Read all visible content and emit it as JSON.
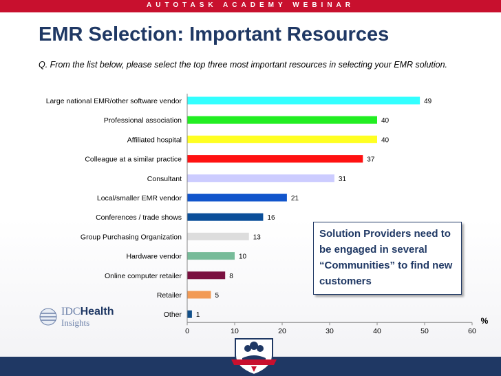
{
  "header": {
    "banner": "AUTOTASK ACADEMY WEBINAR"
  },
  "slide": {
    "title": "EMR Selection: Important Resources",
    "question": "Q. From the list below, please select the top three most important resources in selecting your EMR solution.",
    "callout": "Solution Providers need to be engaged in several “Communities” to find new customers"
  },
  "logo": {
    "brand_bold": "Health",
    "brand_light": "IDC",
    "line2": "Insights"
  },
  "chart_data": {
    "type": "bar",
    "orientation": "horizontal",
    "categories": [
      "Large national EMR/other software vendor",
      "Professional association",
      "Affiliated hospital",
      "Colleague at a similar practice",
      "Consultant",
      "Local/smaller EMR vendor",
      "Conferences / trade shows",
      "Group Purchasing Organization",
      "Hardware vendor",
      "Online computer retailer",
      "Retailer",
      "Other"
    ],
    "values": [
      49,
      40,
      40,
      37,
      31,
      21,
      16,
      13,
      10,
      8,
      5,
      1
    ],
    "colors": [
      "#33ffff",
      "#22ee22",
      "#ffff22",
      "#ff1111",
      "#ccccff",
      "#1155cc",
      "#0b4f9a",
      "#dddddd",
      "#77bb99",
      "#7a1040",
      "#f29a55",
      "#114f8a"
    ],
    "xlim": [
      0,
      60
    ],
    "xticks": [
      0,
      10,
      20,
      30,
      40,
      50,
      60
    ],
    "xlabel": "%"
  }
}
